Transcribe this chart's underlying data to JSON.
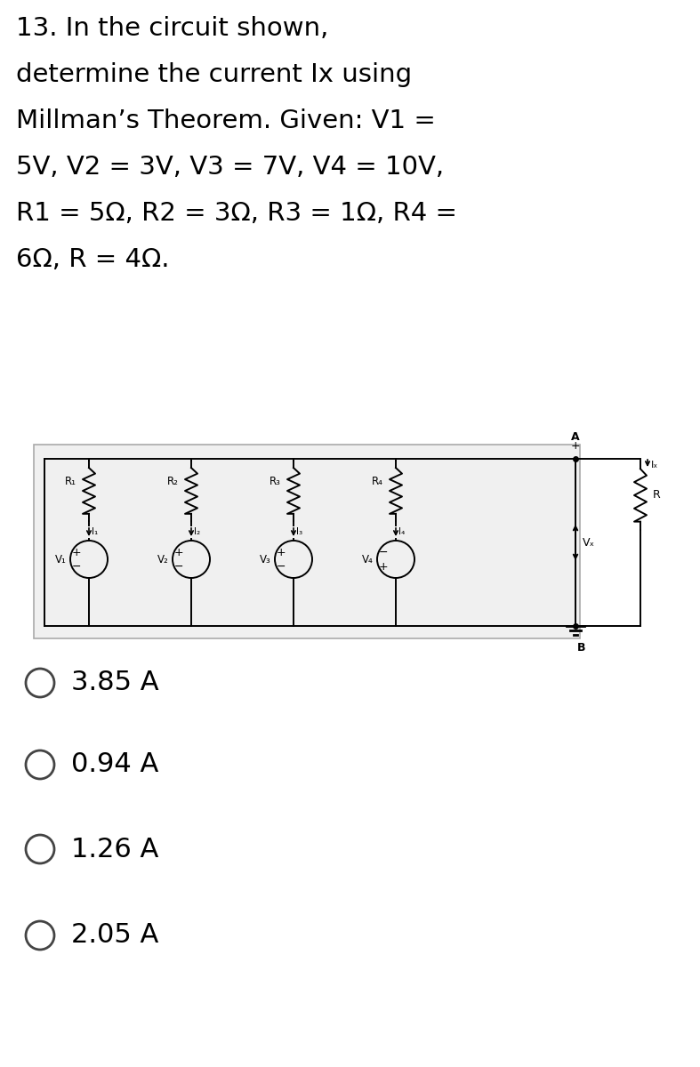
{
  "title_lines": [
    "13. In the circuit shown,",
    "determine the current Ix using",
    "Millman’s Theorem. Given: V1 =",
    "5V, V2 = 3V, V3 = 7V, V4 = 10V,",
    "R1 = 5Ω, R2 = 3Ω, R3 = 1Ω, R4 =",
    "6Ω, R = 4Ω."
  ],
  "choices": [
    "3.85 A",
    "0.94 A",
    "1.26 A",
    "2.05 A"
  ],
  "res_labels": [
    "R₁",
    "R₂",
    "R₃",
    "R₄"
  ],
  "volt_labels": [
    "V₁",
    "V₂",
    "V₃",
    "V₄"
  ],
  "curr_labels": [
    "I₁",
    "I₂",
    "I₃",
    "I₄"
  ],
  "bg_color": "#ffffff",
  "text_color": "#000000",
  "title_fontsize": 21,
  "choice_fontsize": 22,
  "circuit_bg": "#f0f0f0",
  "circuit_border": "#aaaaaa"
}
